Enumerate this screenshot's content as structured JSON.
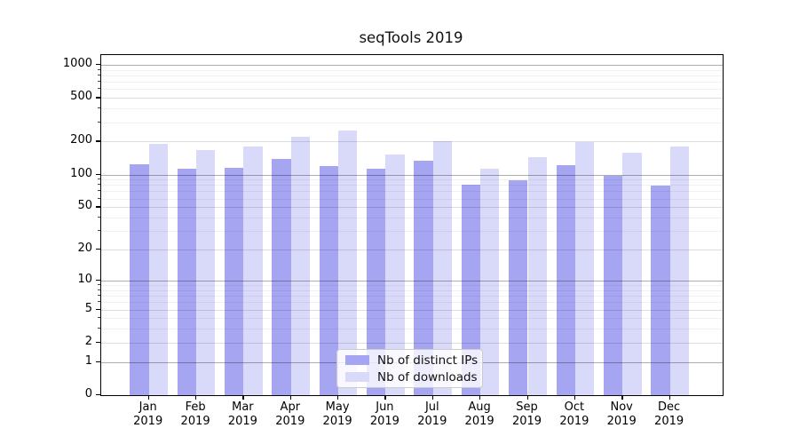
{
  "chart_data": {
    "type": "bar",
    "title": "seqTools 2019",
    "categories": [
      "Jan",
      "Feb",
      "Mar",
      "Apr",
      "May",
      "Jun",
      "Jul",
      "Aug",
      "Sep",
      "Oct",
      "Nov",
      "Dec"
    ],
    "year": "2019",
    "series": [
      {
        "name": "Nb of distinct IPs",
        "color": "#a5a5f2",
        "values": [
          125,
          114,
          116,
          139,
          119,
          112,
          134,
          81,
          88,
          121,
          97,
          79
        ]
      },
      {
        "name": "Nb of downloads",
        "color": "#d9d9f9",
        "values": [
          190,
          166,
          181,
          222,
          252,
          152,
          202,
          114,
          144,
          199,
          158,
          181
        ]
      }
    ],
    "xlabel": "",
    "ylabel": "",
    "yscale": "log1p",
    "yticks": [
      0,
      1,
      2,
      5,
      10,
      20,
      50,
      100,
      200,
      500,
      1000
    ],
    "ylim": [
      0,
      1230
    ],
    "grid": true,
    "legend_position": "lower center"
  }
}
